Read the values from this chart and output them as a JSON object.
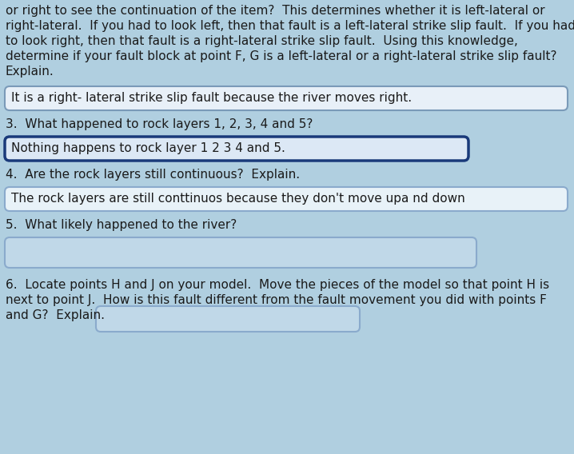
{
  "bg_color": "#b0cfe0",
  "text_color": "#1a1a1a",
  "intro_lines": [
    "or right to see the continuation of the item?  This determines whether it is left-lateral or",
    "right-lateral.  If you had to look left, then that fault is a left-lateral strike slip fault.  If you had",
    "to look right, then that fault is a right-lateral strike slip fault.  Using this knowledge,",
    "determine if your fault block at point F, G is a left-lateral or a right-lateral strike slip fault?",
    "Explain."
  ],
  "box1_text": "It is a right- lateral strike slip fault because the river moves right.",
  "box1_border": "#7a9ab8",
  "box1_bg": "#e8f0f8",
  "q3_text": "3.  What happened to rock layers 1, 2, 3, 4 and 5?",
  "box2_text": "Nothing happens to rock layer 1 2 3 4 and 5.",
  "box2_border": "#1a3a7a",
  "box2_bg": "#dce8f5",
  "q4_text": "4.  Are the rock layers still continuous?  Explain.",
  "box3_text": "The rock layers are still conttinuos because they don't move upa nd down",
  "box3_border": "#8aaacc",
  "box3_bg": "#e8f2f8",
  "q5_text": "5.  What likely happened to the river?",
  "box4_bg": "#c0d8e8",
  "box4_border": "#8aaacc",
  "q6_lines": [
    "6.  Locate points H and J on your model.  Move the pieces of the model so that point H is",
    "next to point J.  How is this fault different from the fault movement you did with points F",
    "and G?  Explain."
  ],
  "box5_bg": "#c0d8e8",
  "box5_border": "#8aaacc",
  "font_size": 11.0
}
